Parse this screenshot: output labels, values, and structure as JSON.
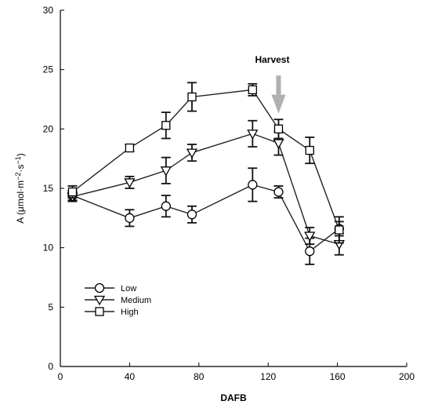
{
  "chart_data": {
    "type": "line",
    "title": "",
    "xlabel": "DAFB",
    "ylabel": {
      "base": "A (μmol·m",
      "exp1": "−2",
      "mid": "·s",
      "exp2": "−1",
      "end": ")"
    },
    "xlim": [
      0,
      200
    ],
    "ylim": [
      0,
      30
    ],
    "xticks": [
      0,
      40,
      80,
      120,
      160,
      200
    ],
    "yticks": [
      0,
      5,
      10,
      15,
      20,
      25,
      30
    ],
    "grid": false,
    "legend_position": "lower-left",
    "series": [
      {
        "name": "Low",
        "marker": "circle",
        "x": [
          7,
          40,
          61,
          76,
          111,
          126,
          144,
          161
        ],
        "y": [
          14.4,
          12.5,
          13.5,
          12.8,
          15.3,
          14.7,
          9.7,
          11.6
        ],
        "err": [
          0.4,
          0.7,
          0.9,
          0.7,
          1.4,
          0.5,
          1.1,
          0.6
        ]
      },
      {
        "name": "Medium",
        "marker": "triangle-down",
        "x": [
          7,
          40,
          61,
          76,
          111,
          126,
          144,
          161
        ],
        "y": [
          14.3,
          15.5,
          16.5,
          18.0,
          19.6,
          18.8,
          11.0,
          10.3
        ],
        "err": [
          0.4,
          0.5,
          1.1,
          0.7,
          1.1,
          1.0,
          0.7,
          0.9
        ]
      },
      {
        "name": "High",
        "marker": "square",
        "x": [
          7,
          40,
          61,
          76,
          111,
          126,
          144,
          161
        ],
        "y": [
          14.7,
          18.4,
          20.3,
          22.7,
          23.3,
          20.0,
          18.2,
          11.5
        ],
        "err": [
          0.5,
          0.3,
          1.1,
          1.2,
          0.5,
          0.8,
          1.1,
          1.1
        ]
      }
    ],
    "annotations": [
      {
        "text": "Harvest",
        "x": 126,
        "arrow_from_y": 24.5,
        "arrow_to_y": 21.3,
        "arrow_color": "#b0b0b0"
      }
    ]
  }
}
